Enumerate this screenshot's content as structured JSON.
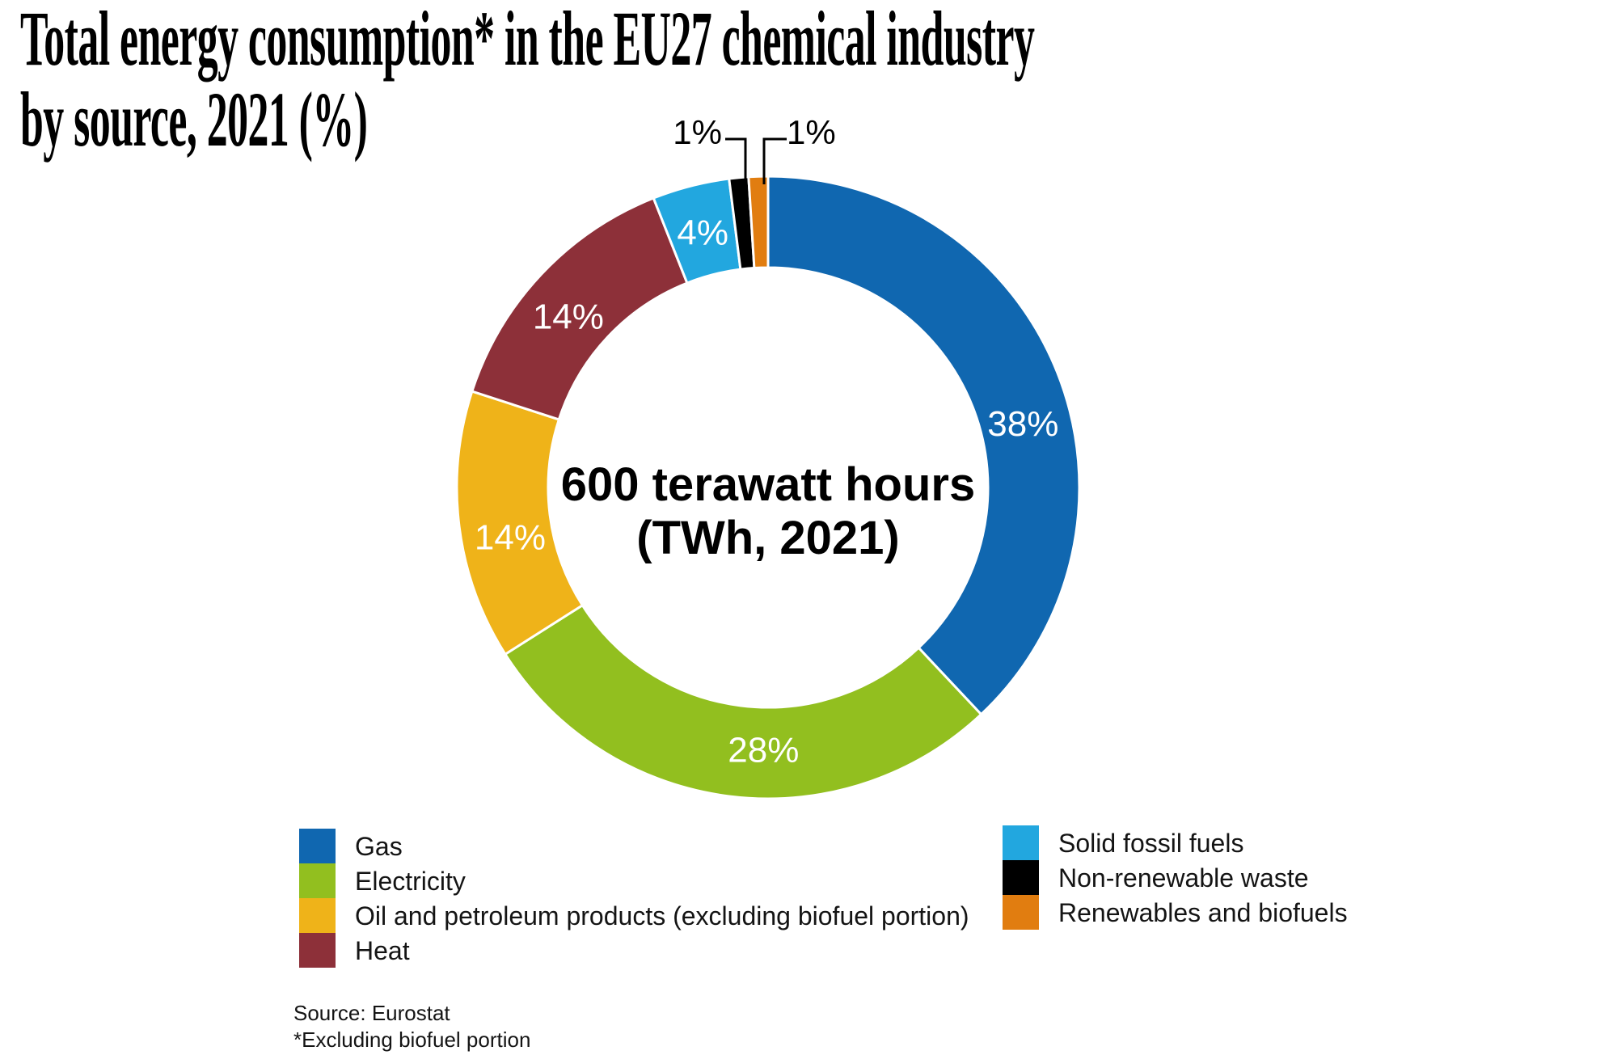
{
  "title": {
    "line1": "Total energy consumption* in the EU27 chemical industry",
    "line2": "by source, 2021 (%)"
  },
  "center_label": {
    "line1": "600 terawatt hours",
    "line2": "(TWh, 2021)"
  },
  "source": {
    "line1": "Source: Eurostat",
    "line2": "*Excluding biofuel portion"
  },
  "chart_data": {
    "type": "pie",
    "subtype": "donut",
    "title": "Total energy consumption* in the EU27 chemical industry by source, 2021 (%)",
    "center_label": "600 terawatt hours (TWh, 2021)",
    "unit": "%",
    "start_angle": "12 o'clock, clockwise",
    "categories": [
      "Gas",
      "Electricity",
      "Oil and petroleum products (excluding biofuel portion)",
      "Heat",
      "Solid fossil fuels",
      "Non-renewable waste",
      "Renewables and biofuels"
    ],
    "values": [
      38,
      28,
      14,
      14,
      4,
      1,
      1
    ],
    "segments": [
      {
        "id": "gas",
        "label": "Gas",
        "value": 38,
        "pct_label": "38%",
        "color": "#1067B0",
        "label_placement": "inside"
      },
      {
        "id": "electricity",
        "label": "Electricity",
        "value": 28,
        "pct_label": "28%",
        "color": "#92BF1F",
        "label_placement": "inside"
      },
      {
        "id": "oil",
        "label": "Oil and petroleum products (excluding biofuel portion)",
        "value": 14,
        "pct_label": "14%",
        "color": "#EFB319",
        "label_placement": "inside"
      },
      {
        "id": "heat",
        "label": "Heat",
        "value": 14,
        "pct_label": "14%",
        "color": "#8D3039",
        "label_placement": "inside"
      },
      {
        "id": "solid-fossil-fuels",
        "label": "Solid fossil fuels",
        "value": 4,
        "pct_label": "4%",
        "color": "#22A7DF",
        "label_placement": "inside"
      },
      {
        "id": "non-renewable-waste",
        "label": "Non-renewable waste",
        "value": 1,
        "pct_label": "1%",
        "color": "#000000",
        "label_placement": "outside-left"
      },
      {
        "id": "renewables-and-biofuels",
        "label": "Renewables and biofuels",
        "value": 1,
        "pct_label": "1%",
        "color": "#E17D10",
        "label_placement": "outside-right"
      }
    ],
    "legend": {
      "position": "bottom",
      "left_column": [
        "gas",
        "electricity",
        "oil",
        "heat"
      ],
      "right_column": [
        "solid-fossil-fuels",
        "non-renewable-waste",
        "renewables-and-biofuels"
      ]
    }
  }
}
